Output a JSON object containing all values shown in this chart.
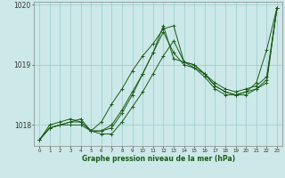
{
  "xlabel": "Graphe pression niveau de la mer (hPa)",
  "background_color": "#cce8e8",
  "grid_color": "#99cccc",
  "line_color": "#1a5c1a",
  "x": [
    0,
    1,
    2,
    3,
    4,
    5,
    6,
    7,
    8,
    9,
    10,
    11,
    12,
    13,
    14,
    15,
    16,
    17,
    18,
    19,
    20,
    21,
    22,
    23
  ],
  "series1": [
    1017.75,
    1017.95,
    1018.0,
    1018.0,
    1018.0,
    1017.9,
    1017.85,
    1017.85,
    1018.05,
    1018.3,
    1018.55,
    1018.85,
    1019.15,
    1019.4,
    1019.05,
    1019.0,
    1018.85,
    1018.65,
    1018.55,
    1018.5,
    1018.55,
    1018.6,
    1018.7,
    1019.95
  ],
  "series2": [
    1017.75,
    1017.95,
    1018.0,
    1018.05,
    1018.05,
    1017.9,
    1017.9,
    1018.0,
    1018.25,
    1018.55,
    1018.85,
    1019.2,
    1019.55,
    1019.2,
    1019.0,
    1018.95,
    1018.8,
    1018.6,
    1018.5,
    1018.5,
    1018.5,
    1018.6,
    1018.75,
    1019.95
  ],
  "series3": [
    1017.75,
    1017.95,
    1018.0,
    1018.05,
    1018.1,
    1017.9,
    1018.05,
    1018.35,
    1018.6,
    1018.9,
    1019.15,
    1019.35,
    1019.6,
    1019.65,
    1019.05,
    1018.95,
    1018.85,
    1018.7,
    1018.6,
    1018.55,
    1018.6,
    1018.65,
    1018.8,
    1019.95
  ],
  "series4": [
    1017.75,
    1018.0,
    1018.05,
    1018.1,
    1018.05,
    1017.9,
    1017.9,
    1017.95,
    1018.2,
    1018.5,
    1018.85,
    1019.2,
    1019.65,
    1019.1,
    1019.05,
    1019.0,
    1018.85,
    1018.65,
    1018.55,
    1018.5,
    1018.55,
    1018.7,
    1019.25,
    1019.95
  ],
  "ylim": [
    1017.65,
    1020.05
  ],
  "yticks": [
    1018,
    1019,
    1020
  ],
  "marker": "+"
}
